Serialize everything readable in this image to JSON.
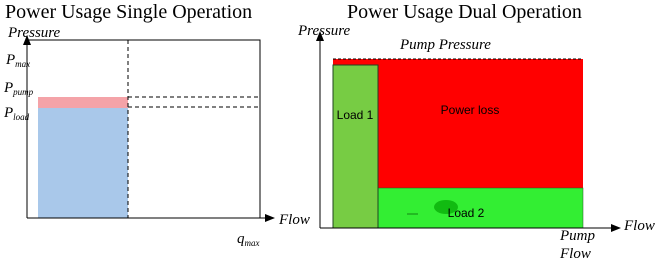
{
  "left": {
    "title": "Power Usage Single Operation",
    "y_axis_label": "Pressure",
    "x_axis_label": "Flow",
    "p_max": {
      "main": "P",
      "sub": "max"
    },
    "p_pump": {
      "main": "P",
      "sub": "pump"
    },
    "p_load": {
      "main": "P",
      "sub": "load"
    },
    "q_max": {
      "main": "q",
      "sub": "max"
    }
  },
  "right": {
    "title": "Power Usage Dual Operation",
    "y_axis_label": "Pressure",
    "pump_pressure": "Pump Pressure",
    "load_1": "Load 1",
    "power_loss": "Power loss",
    "load_2": "Load 2",
    "x_axis_label": "Flow",
    "pump_flow": [
      "Pump",
      "Flow"
    ]
  }
}
